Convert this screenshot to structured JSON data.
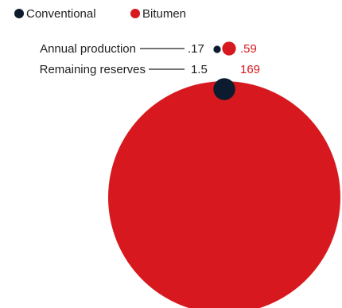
{
  "chart_data": {
    "type": "bubble",
    "title": "",
    "legend": {
      "placement": "top-left",
      "items": [
        {
          "name": "Conventional",
          "color": "#0d1b2e"
        },
        {
          "name": "Bitumen",
          "color": "#d7191f"
        }
      ]
    },
    "categories": [
      "Annual production",
      "Remaining reserves"
    ],
    "series": [
      {
        "name": "Conventional",
        "color": "#0d1b2e",
        "values": [
          0.17,
          1.5
        ],
        "labels": [
          ".17",
          "1.5"
        ]
      },
      {
        "name": "Bitumen",
        "color": "#d7191f",
        "values": [
          0.59,
          169
        ],
        "labels": [
          ".59",
          "169"
        ]
      }
    ],
    "area_proportional": true
  }
}
